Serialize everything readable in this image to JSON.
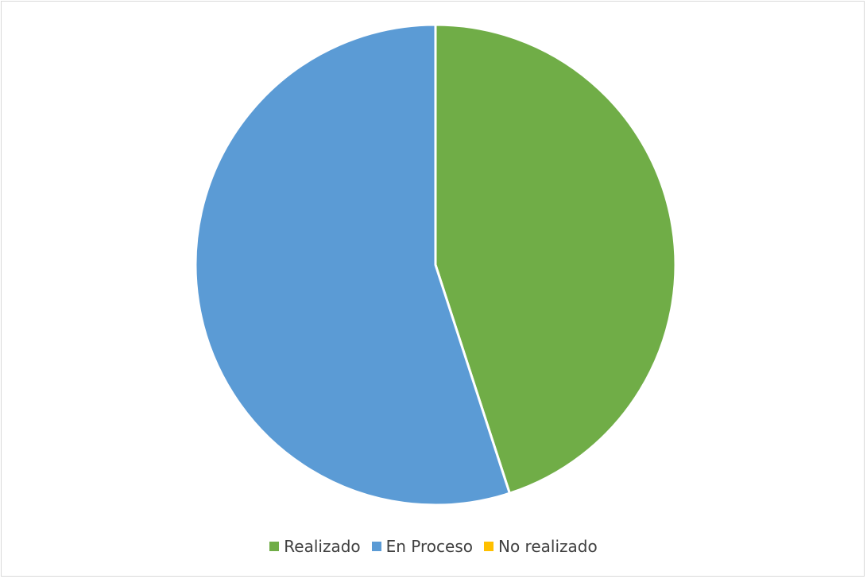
{
  "chart_data": {
    "type": "pie",
    "title": "",
    "categories": [
      "Realizado",
      "En Proceso",
      "No realizado"
    ],
    "values": [
      45,
      55,
      0
    ],
    "colors": [
      "#70AD47",
      "#5B9BD5",
      "#FFC000"
    ],
    "legend_position": "bottom",
    "start_angle": "top",
    "direction": "clockwise"
  }
}
